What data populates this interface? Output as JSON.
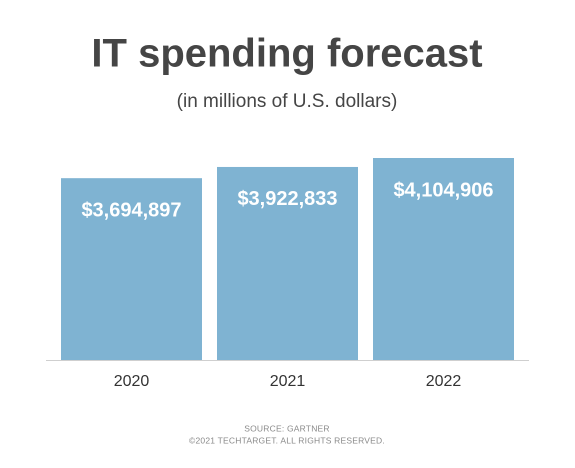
{
  "chart_data": {
    "type": "bar",
    "title": "IT spending forecast",
    "subtitle": "(in millions of U.S. dollars)",
    "categories": [
      "2020",
      "2021",
      "2022"
    ],
    "values": [
      3694897,
      3922833,
      4104906
    ],
    "value_labels": [
      "$3,694,897",
      "$3,922,833",
      "$4,104,906"
    ],
    "color": "#7fb3d2",
    "source": "SOURCE: GARTNER",
    "copyright": "©2021 TECHTARGET. ALL RIGHTS RESERVED."
  }
}
